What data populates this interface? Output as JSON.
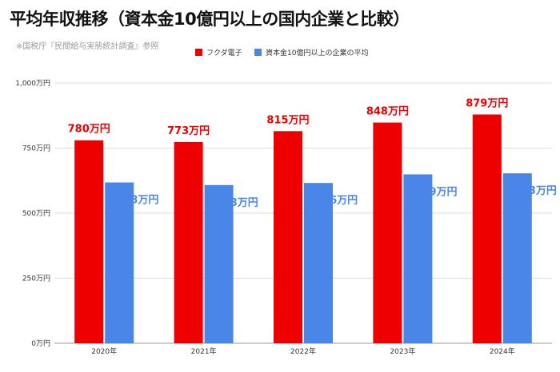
{
  "title": "平均年収推移（資本金10億円以上の国内企業と比較）",
  "source": "※国税庁『民間給与実態統計調査』参照",
  "colors": {
    "series1": "#ee0000",
    "series2": "#4a86e8",
    "grid": "#dddddd"
  },
  "chart_data": {
    "type": "bar",
    "categories": [
      "2020年",
      "2021年",
      "2022年",
      "2023年",
      "2024年"
    ],
    "series": [
      {
        "name": "フクダ電子",
        "values": [
          780,
          773,
          815,
          848,
          879
        ],
        "labels": [
          "780万円",
          "773万円",
          "815万円",
          "848万円",
          "879万円"
        ],
        "color": "#ee0000"
      },
      {
        "name": "資本金10億円以上の企業の平均",
        "values": [
          618,
          608,
          616,
          649,
          653
        ],
        "labels": [
          "618万円",
          "608万円",
          "616万円",
          "649万円",
          "653万円"
        ],
        "color": "#4a86e8"
      }
    ],
    "yticks": [
      0,
      250,
      500,
      750,
      1000
    ],
    "ytick_labels": [
      "0万円",
      "250万円",
      "500万円",
      "750万円",
      "1,000万円"
    ],
    "ylim": [
      0,
      1000
    ],
    "legend": "top-center",
    "grid": true
  }
}
